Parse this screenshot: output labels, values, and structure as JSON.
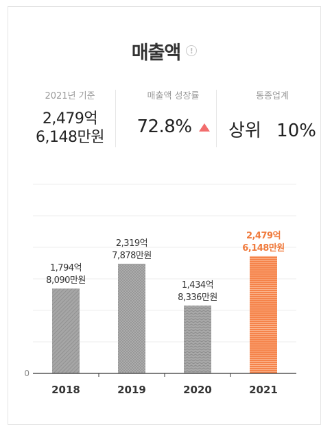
{
  "header": {
    "title": "매출액",
    "info_icon": "info-icon"
  },
  "stats": {
    "base": {
      "label": "2021년 기준",
      "line1": "2,479억",
      "line2": "6,148만원"
    },
    "growth": {
      "label": "매출액 성장률",
      "value": "72.8%",
      "trend": "up",
      "trend_color": "#f26d6d"
    },
    "industry": {
      "label": "동종업계",
      "rank_label": "상위",
      "rank_value": "10%"
    }
  },
  "chart_data": {
    "type": "bar",
    "categories": [
      "2018",
      "2019",
      "2020",
      "2021"
    ],
    "values": [
      1794.809,
      2319.7878,
      1434.8336,
      2479.6148
    ],
    "unit": "억원",
    "data_labels": [
      [
        "1,794억",
        "8,090만원"
      ],
      [
        "2,319억",
        "7,878만원"
      ],
      [
        "1,434억",
        "8,336만원"
      ],
      [
        "2,479억",
        "6,148만원"
      ]
    ],
    "y_tick_labels": [
      "0"
    ],
    "ylim": [
      0,
      4000
    ],
    "grid": true,
    "highlight_index": 3,
    "colors": {
      "bar": "#a3a3a3",
      "highlight": "#f5834a",
      "highlight_label": "#f07a3c"
    }
  }
}
